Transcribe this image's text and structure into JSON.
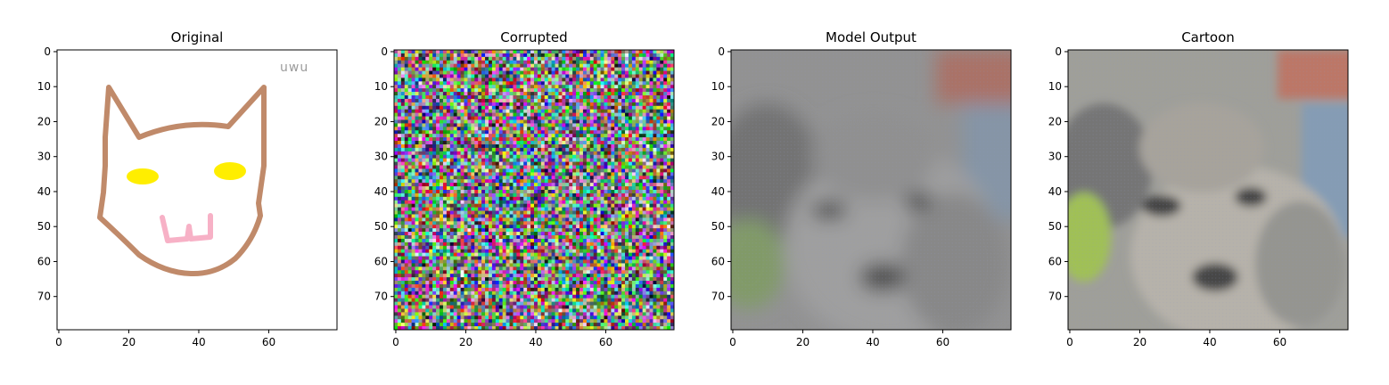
{
  "panels": [
    {
      "key": "original",
      "title": "Original"
    },
    {
      "key": "corrupted",
      "title": "Corrupted"
    },
    {
      "key": "model",
      "title": "Model Output"
    },
    {
      "key": "cartoon",
      "title": "Cartoon"
    }
  ],
  "axes": {
    "x_ticks": [
      0,
      20,
      40,
      60
    ],
    "y_ticks": [
      0,
      10,
      20,
      30,
      40,
      50,
      60,
      70
    ],
    "pixel_extent": 80
  },
  "original": {
    "signature_text": "uwu",
    "colors": {
      "outline": "#c08a6a",
      "eyes": "#ffee00",
      "mouth": "#f7b1c6"
    }
  },
  "colors": {
    "axis": "#000000"
  }
}
